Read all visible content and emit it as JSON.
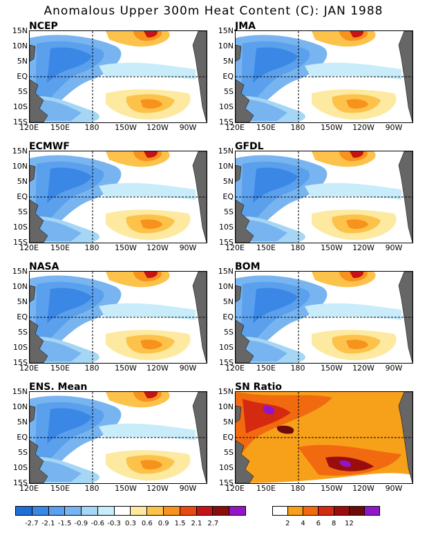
{
  "title": "Anomalous Upper 300m Heat Content (C): JAN 1988",
  "panels": [
    {
      "label": "NCEP"
    },
    {
      "label": "JMA"
    },
    {
      "label": "ECMWF"
    },
    {
      "label": "GFDL"
    },
    {
      "label": "NASA"
    },
    {
      "label": "BOM"
    },
    {
      "label": "ENS. Mean"
    },
    {
      "label": "SN Ratio"
    }
  ],
  "axes": {
    "lat_labels": [
      "15N",
      "10N",
      "5N",
      "EQ",
      "5S",
      "10S",
      "15S"
    ],
    "lon_labels": [
      "120E",
      "150E",
      "180",
      "150W",
      "120W",
      "90W"
    ]
  },
  "anomaly_colorbar": {
    "labels": [
      "-2.7",
      "-2.1",
      "-1.5",
      "-0.9",
      "-0.6",
      "-0.3",
      "0.3",
      "0.6",
      "0.9",
      "1.5",
      "2.1",
      "2.7"
    ],
    "colors": [
      "#1e6fd6",
      "#3a87e6",
      "#5aa0ec",
      "#78b4f0",
      "#a5d6f5",
      "#c8ecfa",
      "#ffffff",
      "#fdeaa0",
      "#fcc24a",
      "#f7921c",
      "#e84a10",
      "#c41414",
      "#8a0d0d",
      "#9016c8"
    ]
  },
  "snr_colorbar": {
    "labels": [
      "2",
      "4",
      "6",
      "8",
      "12"
    ],
    "colors": [
      "#ffffff",
      "#f7a01a",
      "#f26a10",
      "#d42a10",
      "#9a0d0d",
      "#6e0a0a",
      "#9016c8"
    ]
  },
  "colors": {
    "land": "#666666",
    "negative": "#4a95e8",
    "positive": "#fbb53a"
  }
}
